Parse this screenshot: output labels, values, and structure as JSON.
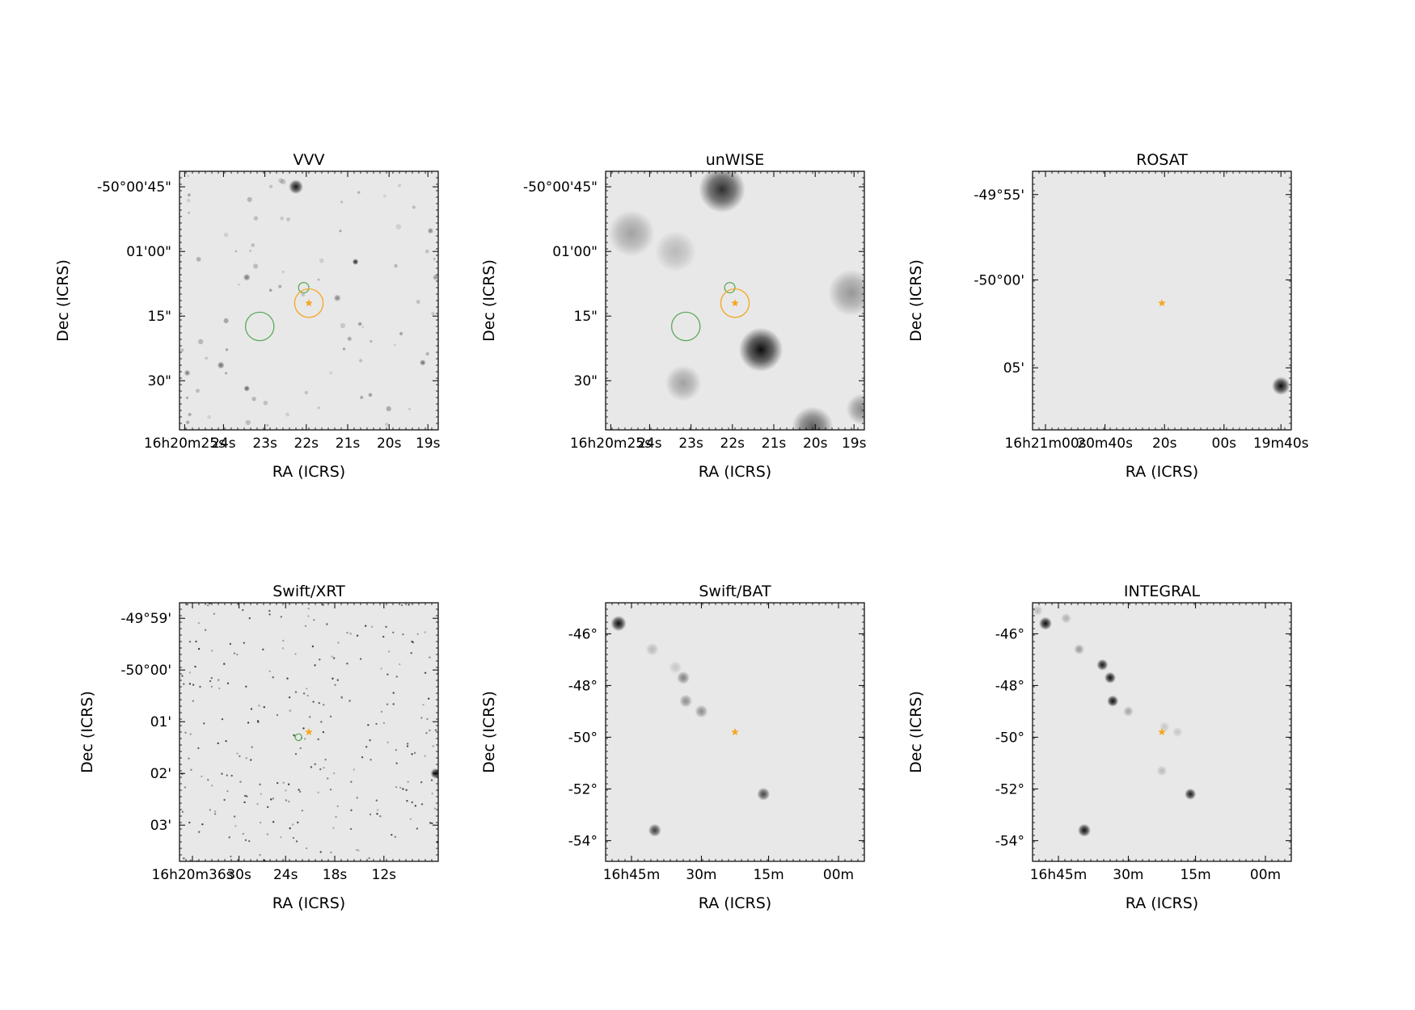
{
  "figure": {
    "panels": [
      {
        "id": "vvv",
        "title": "VVV",
        "style": "optical",
        "xlabel": "RA (ICRS)",
        "ylabel": "Dec (ICRS)",
        "xticks": [
          "16h20m25s",
          "24s",
          "23s",
          "22s",
          "21s",
          "20s",
          "19s"
        ],
        "yticks": [
          "-50°00'45\"",
          "01'00\"",
          "15\"",
          "30\""
        ],
        "sources": [
          {
            "x": 0.45,
            "y": 0.06,
            "r": 0.028,
            "v": 0.9
          },
          {
            "x": 0.68,
            "y": 0.35,
            "r": 0.012,
            "v": 0.85
          },
          {
            "x": 0.26,
            "y": 0.41,
            "r": 0.014,
            "v": 0.5
          },
          {
            "x": 0.61,
            "y": 0.49,
            "r": 0.014,
            "v": 0.45
          },
          {
            "x": 0.16,
            "y": 0.75,
            "r": 0.014,
            "v": 0.55
          },
          {
            "x": 0.26,
            "y": 0.84,
            "r": 0.012,
            "v": 0.6
          },
          {
            "x": 0.94,
            "y": 0.74,
            "r": 0.012,
            "v": 0.55
          },
          {
            "x": 0.97,
            "y": 0.23,
            "r": 0.012,
            "v": 0.45
          },
          {
            "x": 0.03,
            "y": 0.78,
            "r": 0.012,
            "v": 0.5
          },
          {
            "x": 0.99,
            "y": 0.41,
            "r": 0.012,
            "v": 0.4
          }
        ],
        "circles": [
          {
            "x": 0.48,
            "y": 0.45,
            "r": 0.02,
            "color": "#5aaa5a"
          },
          {
            "x": 0.31,
            "y": 0.6,
            "r": 0.055,
            "color": "#5aaa5a"
          },
          {
            "x": 0.5,
            "y": 0.51,
            "r": 0.055,
            "color": "#f5a623"
          }
        ],
        "star": {
          "x": 0.5,
          "y": 0.51
        }
      },
      {
        "id": "unwise",
        "title": "unWISE",
        "style": "infrared",
        "xlabel": "RA (ICRS)",
        "ylabel": "Dec (ICRS)",
        "xticks": [
          "16h20m25s",
          "24s",
          "23s",
          "22s",
          "21s",
          "20s",
          "19s"
        ],
        "yticks": [
          "-50°00'45\"",
          "01'00\"",
          "15\"",
          "30\""
        ],
        "sources": [
          {
            "x": 0.45,
            "y": 0.07,
            "r": 0.09,
            "v": 0.8
          },
          {
            "x": 0.6,
            "y": 0.69,
            "r": 0.085,
            "v": 0.95
          },
          {
            "x": 0.1,
            "y": 0.24,
            "r": 0.09,
            "v": 0.3
          },
          {
            "x": 0.95,
            "y": 0.47,
            "r": 0.09,
            "v": 0.35
          },
          {
            "x": 0.3,
            "y": 0.82,
            "r": 0.07,
            "v": 0.3
          },
          {
            "x": 0.8,
            "y": 0.99,
            "r": 0.08,
            "v": 0.6
          },
          {
            "x": 0.99,
            "y": 0.92,
            "r": 0.06,
            "v": 0.4
          },
          {
            "x": 0.27,
            "y": 0.31,
            "r": 0.08,
            "v": 0.2
          }
        ],
        "circles": [
          {
            "x": 0.48,
            "y": 0.45,
            "r": 0.02,
            "color": "#5aaa5a"
          },
          {
            "x": 0.31,
            "y": 0.6,
            "r": 0.055,
            "color": "#5aaa5a"
          },
          {
            "x": 0.5,
            "y": 0.51,
            "r": 0.055,
            "color": "#f5a623"
          }
        ],
        "star": {
          "x": 0.5,
          "y": 0.51
        }
      },
      {
        "id": "rosat",
        "title": "ROSAT",
        "style": "xray",
        "xlabel": "RA (ICRS)",
        "ylabel": "Dec (ICRS)",
        "xticks": [
          "16h21m00s",
          "20m40s",
          "20s",
          "00s",
          "19m40s"
        ],
        "yticks": [
          "-49°55'",
          "-50°00'",
          "05'"
        ],
        "sources": [
          {
            "x": 0.96,
            "y": 0.83,
            "r": 0.035,
            "v": 0.95
          }
        ],
        "circles": [],
        "star": {
          "x": 0.5,
          "y": 0.51
        }
      },
      {
        "id": "swift-xrt",
        "title": "Swift/XRT",
        "style": "photon",
        "xlabel": "RA (ICRS)",
        "ylabel": "Dec (ICRS)",
        "xticks": [
          "16h20m36s",
          "30s",
          "24s",
          "18s",
          "12s"
        ],
        "yticks": [
          "-49°59'",
          "-50°00'",
          "01'",
          "02'",
          "03'"
        ],
        "sources": [
          {
            "x": 0.99,
            "y": 0.66,
            "r": 0.02,
            "v": 0.95
          }
        ],
        "circles": [
          {
            "x": 0.46,
            "y": 0.52,
            "r": 0.013,
            "color": "#5aaa5a"
          }
        ],
        "star": {
          "x": 0.5,
          "y": 0.5
        }
      },
      {
        "id": "swift-bat",
        "title": "Swift/BAT",
        "style": "hard",
        "xlabel": "RA (ICRS)",
        "ylabel": "Dec (ICRS)",
        "xticks": [
          "16h45m",
          "30m",
          "15m",
          "00m"
        ],
        "yticks": [
          "-46°",
          "-48°",
          "-50°",
          "-52°",
          "-54°"
        ],
        "sources": [
          {
            "x": 0.05,
            "y": 0.08,
            "r": 0.03,
            "v": 0.95
          },
          {
            "x": 0.19,
            "y": 0.88,
            "r": 0.025,
            "v": 0.75
          },
          {
            "x": 0.61,
            "y": 0.74,
            "r": 0.025,
            "v": 0.7
          },
          {
            "x": 0.3,
            "y": 0.29,
            "r": 0.025,
            "v": 0.45
          },
          {
            "x": 0.31,
            "y": 0.38,
            "r": 0.025,
            "v": 0.4
          },
          {
            "x": 0.37,
            "y": 0.42,
            "r": 0.025,
            "v": 0.4
          },
          {
            "x": 0.18,
            "y": 0.18,
            "r": 0.025,
            "v": 0.2
          },
          {
            "x": 0.27,
            "y": 0.25,
            "r": 0.025,
            "v": 0.15
          }
        ],
        "circles": [],
        "star": {
          "x": 0.5,
          "y": 0.5
        }
      },
      {
        "id": "integral",
        "title": "INTEGRAL",
        "style": "hard",
        "xlabel": "RA (ICRS)",
        "ylabel": "Dec (ICRS)",
        "xticks": [
          "16h45m",
          "30m",
          "15m",
          "00m"
        ],
        "yticks": [
          "-46°",
          "-48°",
          "-50°",
          "-52°",
          "-54°"
        ],
        "sources": [
          {
            "x": 0.05,
            "y": 0.08,
            "r": 0.025,
            "v": 0.95
          },
          {
            "x": 0.2,
            "y": 0.88,
            "r": 0.025,
            "v": 0.95
          },
          {
            "x": 0.61,
            "y": 0.74,
            "r": 0.022,
            "v": 0.9
          },
          {
            "x": 0.27,
            "y": 0.24,
            "r": 0.022,
            "v": 0.9
          },
          {
            "x": 0.3,
            "y": 0.29,
            "r": 0.022,
            "v": 0.95
          },
          {
            "x": 0.31,
            "y": 0.38,
            "r": 0.022,
            "v": 0.95
          },
          {
            "x": 0.13,
            "y": 0.06,
            "r": 0.02,
            "v": 0.25
          },
          {
            "x": 0.18,
            "y": 0.18,
            "r": 0.02,
            "v": 0.35
          },
          {
            "x": 0.37,
            "y": 0.42,
            "r": 0.02,
            "v": 0.3
          },
          {
            "x": 0.51,
            "y": 0.48,
            "r": 0.02,
            "v": 0.15
          },
          {
            "x": 0.56,
            "y": 0.5,
            "r": 0.02,
            "v": 0.15
          },
          {
            "x": 0.5,
            "y": 0.65,
            "r": 0.02,
            "v": 0.2
          },
          {
            "x": 0.02,
            "y": 0.03,
            "r": 0.02,
            "v": 0.2
          }
        ],
        "circles": [],
        "star": {
          "x": 0.5,
          "y": 0.5
        }
      }
    ],
    "colors": {
      "background": "#e8e8e8",
      "star": "#f5a623",
      "green_circle": "#5aaa5a",
      "orange_circle": "#f5a623"
    }
  }
}
